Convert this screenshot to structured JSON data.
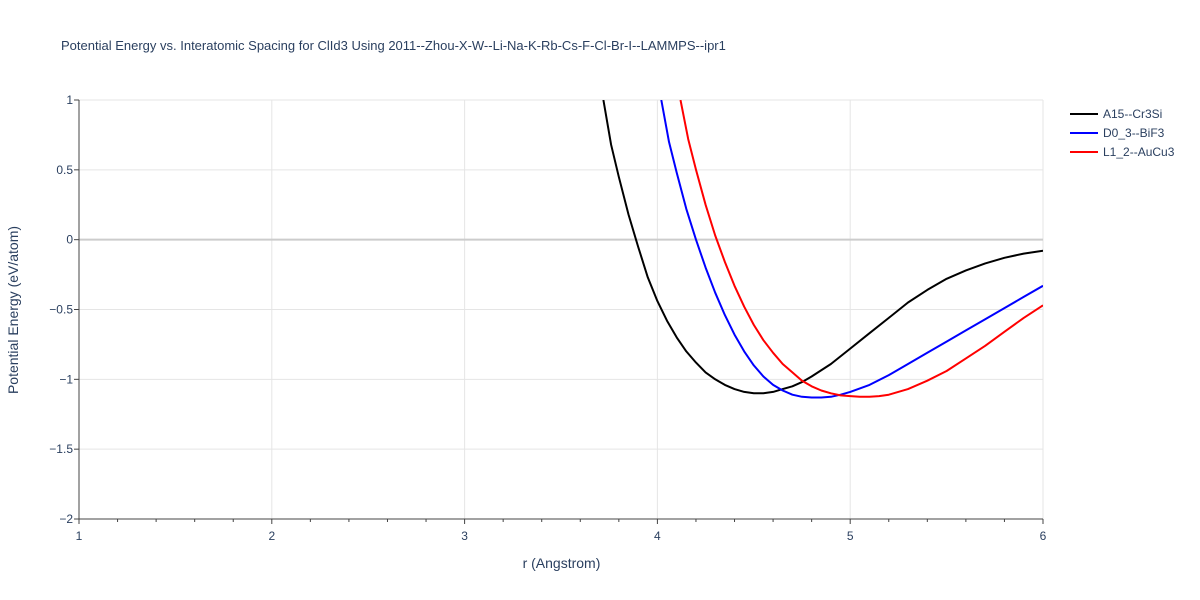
{
  "chart_data": {
    "type": "line",
    "title": "Potential Energy vs. Interatomic Spacing for ClId3 Using 2011--Zhou-X-W--Li-Na-K-Rb-Cs-F-Cl-Br-I--LAMMPS--ipr1",
    "xlabel": "r (Angstrom)",
    "ylabel": "Potential Energy (eV/atom)",
    "xlim": [
      1,
      6
    ],
    "ylim": [
      -2,
      1
    ],
    "x_ticks": [
      1,
      2,
      3,
      4,
      5,
      6
    ],
    "y_ticks": [
      -2,
      -1.5,
      -1,
      -0.5,
      0,
      0.5,
      1
    ],
    "x_tick_labels": [
      "1",
      "2",
      "3",
      "4",
      "5",
      "6"
    ],
    "y_tick_labels": [
      "−2",
      "−1.5",
      "−1",
      "−0.5",
      "0",
      "0.5",
      "1"
    ],
    "grid": true,
    "legend_position": "top-right",
    "series": [
      {
        "name": "A15--Cr3Si",
        "color": "#000000",
        "x": [
          3.72,
          3.76,
          3.8,
          3.85,
          3.9,
          3.95,
          4.0,
          4.05,
          4.1,
          4.15,
          4.2,
          4.25,
          4.3,
          4.35,
          4.4,
          4.45,
          4.5,
          4.55,
          4.6,
          4.65,
          4.7,
          4.75,
          4.8,
          4.9,
          5.0,
          5.1,
          5.2,
          5.3,
          5.4,
          5.5,
          5.6,
          5.7,
          5.8,
          5.9,
          6.0
        ],
        "y": [
          1.0,
          0.68,
          0.45,
          0.18,
          -0.05,
          -0.27,
          -0.44,
          -0.58,
          -0.7,
          -0.8,
          -0.88,
          -0.95,
          -1.0,
          -1.04,
          -1.07,
          -1.09,
          -1.1,
          -1.1,
          -1.09,
          -1.07,
          -1.05,
          -1.02,
          -0.98,
          -0.89,
          -0.78,
          -0.67,
          -0.56,
          -0.45,
          -0.36,
          -0.28,
          -0.22,
          -0.17,
          -0.13,
          -0.1,
          -0.08
        ]
      },
      {
        "name": "D0_3--BiF3",
        "color": "#0000ff",
        "x": [
          4.02,
          4.06,
          4.1,
          4.15,
          4.2,
          4.25,
          4.3,
          4.35,
          4.4,
          4.45,
          4.5,
          4.55,
          4.6,
          4.65,
          4.7,
          4.75,
          4.8,
          4.85,
          4.9,
          4.95,
          5.0,
          5.1,
          5.2,
          5.3,
          5.4,
          5.5,
          5.6,
          5.7,
          5.8,
          5.9,
          6.0
        ],
        "y": [
          1.0,
          0.7,
          0.48,
          0.22,
          0.0,
          -0.2,
          -0.38,
          -0.54,
          -0.68,
          -0.8,
          -0.9,
          -0.98,
          -1.04,
          -1.08,
          -1.11,
          -1.125,
          -1.13,
          -1.13,
          -1.125,
          -1.11,
          -1.09,
          -1.04,
          -0.97,
          -0.89,
          -0.81,
          -0.73,
          -0.65,
          -0.57,
          -0.49,
          -0.41,
          -0.33
        ]
      },
      {
        "name": "L1_2--AuCu3",
        "color": "#ff0000",
        "x": [
          4.12,
          4.16,
          4.2,
          4.25,
          4.3,
          4.35,
          4.4,
          4.45,
          4.5,
          4.55,
          4.6,
          4.65,
          4.7,
          4.75,
          4.8,
          4.85,
          4.9,
          4.95,
          5.0,
          5.05,
          5.1,
          5.15,
          5.2,
          5.3,
          5.4,
          5.5,
          5.6,
          5.7,
          5.8,
          5.9,
          6.0
        ],
        "y": [
          1.0,
          0.72,
          0.5,
          0.25,
          0.03,
          -0.16,
          -0.33,
          -0.48,
          -0.61,
          -0.72,
          -0.81,
          -0.89,
          -0.95,
          -1.01,
          -1.05,
          -1.08,
          -1.1,
          -1.115,
          -1.12,
          -1.125,
          -1.125,
          -1.12,
          -1.11,
          -1.07,
          -1.01,
          -0.94,
          -0.85,
          -0.76,
          -0.66,
          -0.56,
          -0.47
        ]
      }
    ]
  }
}
